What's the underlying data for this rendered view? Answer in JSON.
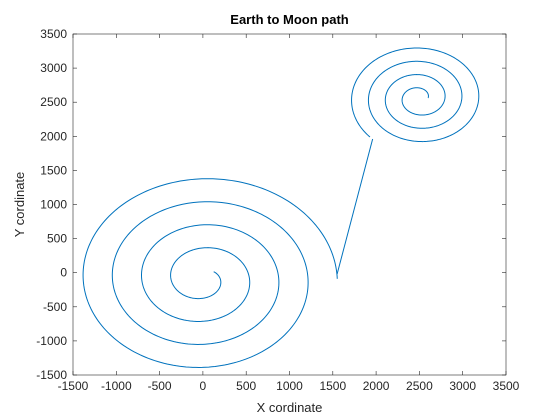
{
  "chart_data": {
    "type": "line",
    "title": "Earth to Moon path",
    "xlabel": "X cordinate",
    "ylabel": "Y cordinate",
    "xlim": [
      -1500,
      3500
    ],
    "ylim": [
      -1500,
      3500
    ],
    "xticks": [
      "-1500",
      "-1000",
      "-500",
      "0",
      "500",
      "1000",
      "1500",
      "2000",
      "2500",
      "3000",
      "3500"
    ],
    "yticks": [
      "-1500",
      "-1000",
      "-500",
      "0",
      "500",
      "1000",
      "1500",
      "2000",
      "2500",
      "3000",
      "3500"
    ],
    "grid": false,
    "legend": "none",
    "line_color": "#0072BD",
    "earth_spiral": {
      "center": [
        0,
        -90
      ],
      "start": [
        110,
        30
      ],
      "end": [
        1550,
        -20
      ],
      "start_angle_deg": 40,
      "end_angle_deg": 0,
      "turns": 4
    },
    "transfer": {
      "from": [
        1550,
        -20
      ],
      "to": [
        1960,
        1960
      ]
    },
    "moon_spiral": {
      "center": [
        2500,
        2560
      ],
      "start": [
        1960,
        1960
      ],
      "end": [
        2600,
        2560
      ],
      "start_angle_deg": 225,
      "end_angle_deg": 0,
      "turns": 3
    }
  }
}
